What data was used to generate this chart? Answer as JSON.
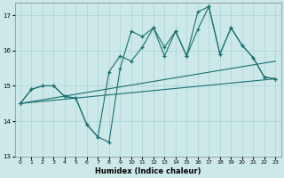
{
  "xlabel": "Humidex (Indice chaleur)",
  "bg_color": "#cce8e8",
  "line_color": "#1a7070",
  "grid_color": "#b0d8d8",
  "xlim": [
    -0.5,
    23.5
  ],
  "ylim": [
    13.0,
    17.35
  ],
  "yticks": [
    13,
    14,
    15,
    16,
    17
  ],
  "xticks": [
    0,
    1,
    2,
    3,
    4,
    5,
    6,
    7,
    8,
    9,
    10,
    11,
    12,
    13,
    14,
    15,
    16,
    17,
    18,
    19,
    20,
    21,
    22,
    23
  ],
  "series1_x": [
    0,
    1,
    2,
    3,
    4,
    5,
    6,
    7,
    8,
    9,
    10,
    11,
    12,
    13,
    14,
    15,
    16,
    17,
    18,
    19,
    20,
    21,
    22,
    23
  ],
  "series1_y": [
    14.5,
    14.9,
    15.0,
    15.0,
    14.7,
    14.65,
    13.9,
    13.55,
    13.4,
    15.5,
    16.55,
    16.4,
    16.65,
    16.1,
    16.55,
    15.85,
    17.1,
    17.25,
    15.9,
    16.65,
    16.15,
    15.8,
    15.25,
    15.2
  ],
  "series2_x": [
    0,
    1,
    2,
    3,
    4,
    5,
    6,
    7,
    8,
    9,
    10,
    11,
    12,
    13,
    14,
    15,
    16,
    17,
    18,
    19,
    20,
    21,
    22,
    23
  ],
  "series2_y": [
    14.5,
    14.9,
    15.0,
    15.0,
    14.7,
    14.65,
    13.9,
    13.55,
    15.4,
    15.85,
    15.7,
    16.1,
    16.65,
    15.85,
    16.55,
    15.85,
    16.6,
    17.25,
    15.9,
    16.65,
    16.15,
    15.8,
    15.25,
    15.2
  ],
  "series3_x": [
    0,
    23
  ],
  "series3_y": [
    14.5,
    15.7
  ],
  "series4_x": [
    0,
    23
  ],
  "series4_y": [
    14.5,
    15.2
  ]
}
